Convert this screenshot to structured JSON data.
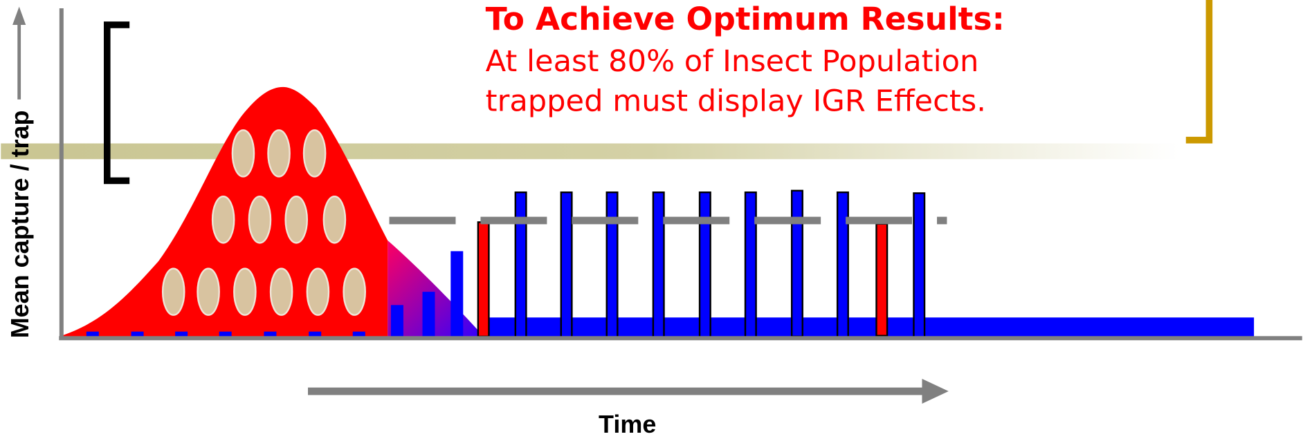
{
  "callout": {
    "title": "To Achieve Optimum Results:",
    "lines": [
      "At least 80% of Insect Population",
      "trapped must display IGR Effects."
    ]
  },
  "axes": {
    "y_label": "Mean capture / trap",
    "x_label": "Time"
  }
}
